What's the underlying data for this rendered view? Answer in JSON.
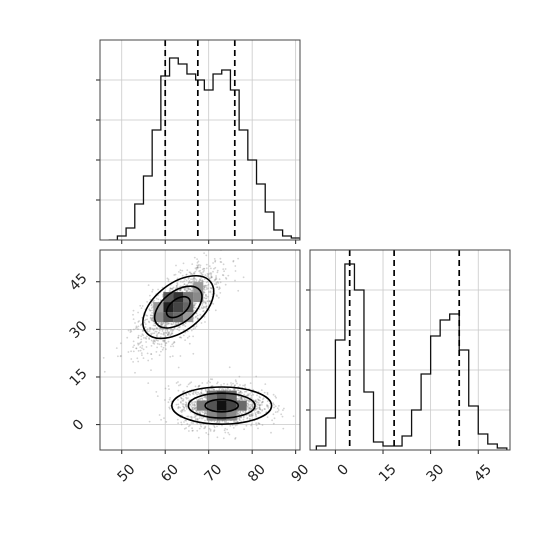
{
  "chart_data": [
    {
      "type": "histogram",
      "variable": "x",
      "xlim": [
        45,
        91
      ],
      "ylim": [
        0,
        1.0
      ],
      "grid": true,
      "bin_edges": [
        47,
        49,
        51,
        53,
        55,
        57,
        59,
        61,
        63,
        65,
        67,
        69,
        71,
        73,
        75,
        77,
        79,
        81,
        83,
        85,
        87,
        89,
        91
      ],
      "values": [
        0.0,
        0.02,
        0.06,
        0.18,
        0.32,
        0.55,
        0.82,
        0.91,
        0.88,
        0.83,
        0.8,
        0.75,
        0.83,
        0.85,
        0.75,
        0.55,
        0.4,
        0.28,
        0.14,
        0.05,
        0.02,
        0.01
      ],
      "quantiles": [
        60.0,
        67.5,
        76.0
      ],
      "x_ticks": [
        50,
        60,
        70,
        80,
        90
      ]
    },
    {
      "type": "heatmap",
      "xlim": [
        45,
        91
      ],
      "ylim": [
        -8,
        55
      ],
      "grid": true,
      "x_ticks": [
        50,
        60,
        70,
        80,
        90
      ],
      "y_ticks": [
        0,
        15,
        30,
        45
      ],
      "x_tick_labels": [
        "50",
        "60",
        "70",
        "80",
        "90"
      ],
      "y_tick_labels": [
        "0",
        "15",
        "30",
        "45"
      ],
      "clusters": [
        {
          "center": [
            63,
            37
          ],
          "spread": [
            4.5,
            5.5
          ],
          "orientation_deg": 38
        },
        {
          "center": [
            73,
            6
          ],
          "spread": [
            5,
            2.8
          ],
          "orientation_deg": 0
        }
      ],
      "contour_levels": 3
    },
    {
      "type": "histogram",
      "variable": "y",
      "xlim": [
        -8,
        55
      ],
      "ylim": [
        0,
        1.0
      ],
      "grid": true,
      "bin_edges": [
        -6,
        -3,
        0,
        3,
        6,
        9,
        12,
        15,
        18,
        21,
        24,
        27,
        30,
        33,
        36,
        39,
        42,
        45,
        48,
        51,
        54
      ],
      "values": [
        0.02,
        0.16,
        0.55,
        0.93,
        0.8,
        0.29,
        0.04,
        0.02,
        0.02,
        0.07,
        0.2,
        0.38,
        0.57,
        0.65,
        0.68,
        0.5,
        0.22,
        0.08,
        0.03,
        0.01
      ],
      "quantiles": [
        4.5,
        18.5,
        39.0
      ],
      "x_ticks": [
        0,
        15,
        30,
        45
      ],
      "x_tick_labels": [
        "0",
        "15",
        "30",
        "45"
      ]
    }
  ]
}
